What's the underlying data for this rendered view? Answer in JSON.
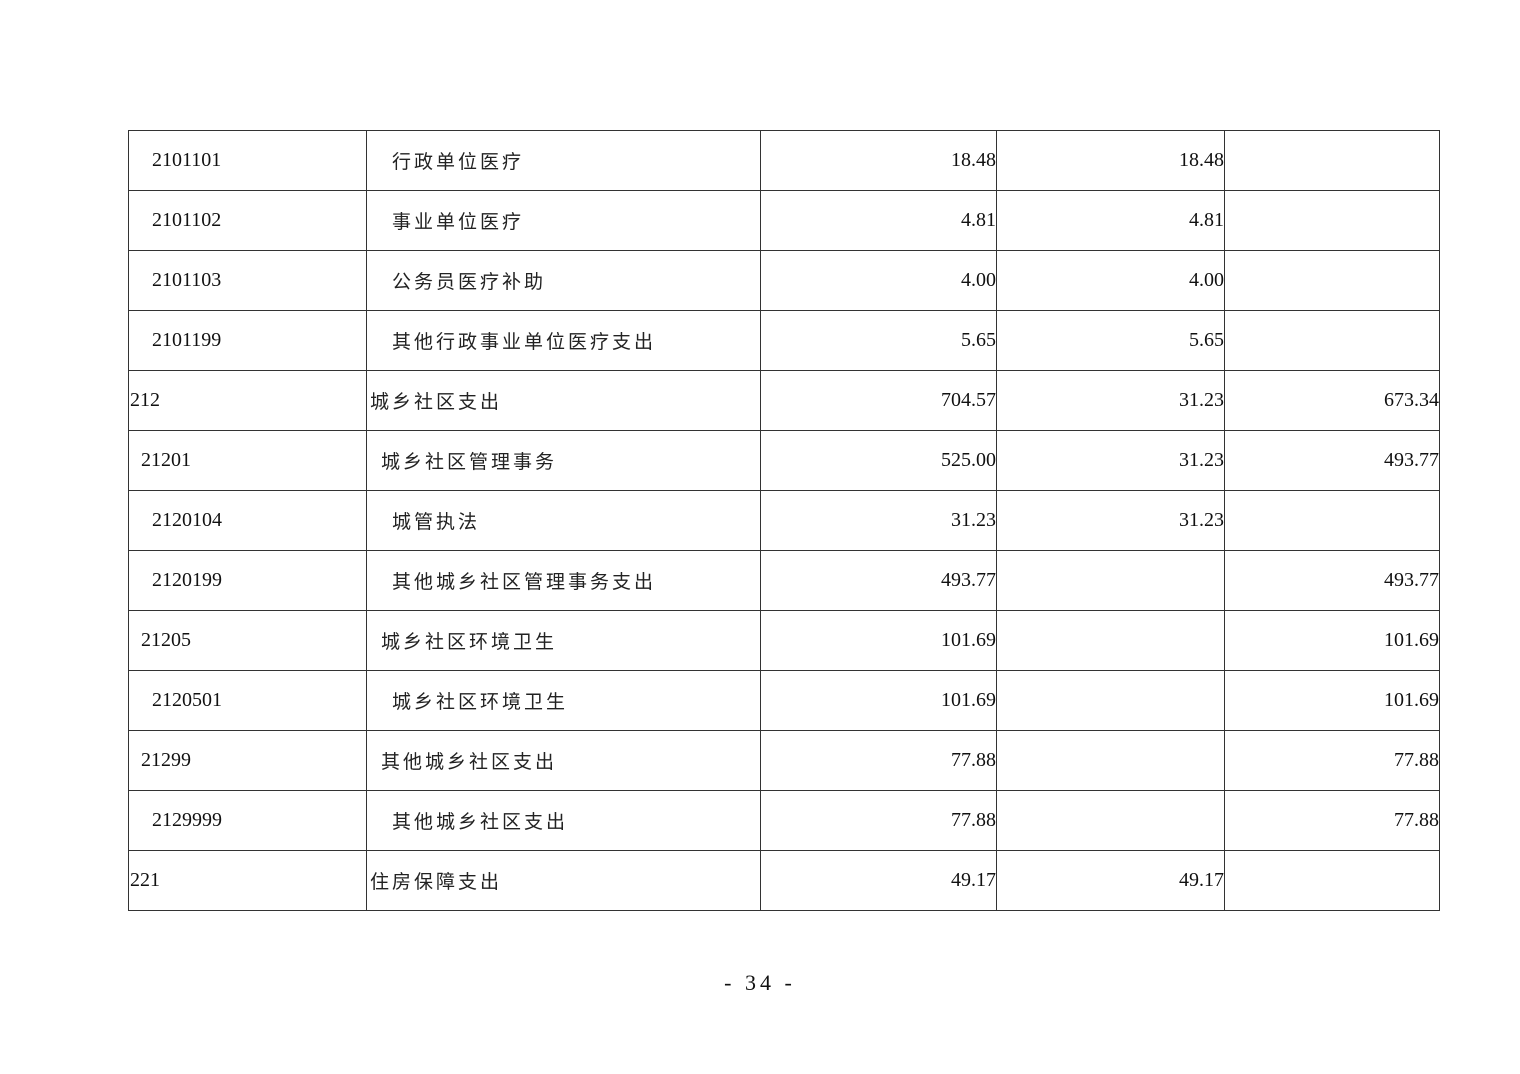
{
  "rows": [
    {
      "level": 2,
      "code": "2101101",
      "name": "行政单位医疗",
      "total": "18.48",
      "basic": "18.48",
      "project": ""
    },
    {
      "level": 2,
      "code": "2101102",
      "name": "事业单位医疗",
      "total": "4.81",
      "basic": "4.81",
      "project": ""
    },
    {
      "level": 2,
      "code": "2101103",
      "name": "公务员医疗补助",
      "total": "4.00",
      "basic": "4.00",
      "project": ""
    },
    {
      "level": 2,
      "code": "2101199",
      "name": "其他行政事业单位医疗支出",
      "total": "5.65",
      "basic": "5.65",
      "project": ""
    },
    {
      "level": 0,
      "code": "212",
      "name": "城乡社区支出",
      "total": "704.57",
      "basic": "31.23",
      "project": "673.34"
    },
    {
      "level": 1,
      "code": "21201",
      "name": "城乡社区管理事务",
      "total": "525.00",
      "basic": "31.23",
      "project": "493.77"
    },
    {
      "level": 2,
      "code": "2120104",
      "name": "城管执法",
      "total": "31.23",
      "basic": "31.23",
      "project": ""
    },
    {
      "level": 2,
      "code": "2120199",
      "name": "其他城乡社区管理事务支出",
      "total": "493.77",
      "basic": "",
      "project": "493.77"
    },
    {
      "level": 1,
      "code": "21205",
      "name": "城乡社区环境卫生",
      "total": "101.69",
      "basic": "",
      "project": "101.69"
    },
    {
      "level": 2,
      "code": "2120501",
      "name": "城乡社区环境卫生",
      "total": "101.69",
      "basic": "",
      "project": "101.69"
    },
    {
      "level": 1,
      "code": "21299",
      "name": "其他城乡社区支出",
      "total": "77.88",
      "basic": "",
      "project": "77.88"
    },
    {
      "level": 2,
      "code": "2129999",
      "name": "其他城乡社区支出",
      "total": "77.88",
      "basic": "",
      "project": "77.88"
    },
    {
      "level": 0,
      "code": "221",
      "name": "住房保障支出",
      "total": "49.17",
      "basic": "49.17",
      "project": ""
    }
  ],
  "page_number": "- 34 -"
}
